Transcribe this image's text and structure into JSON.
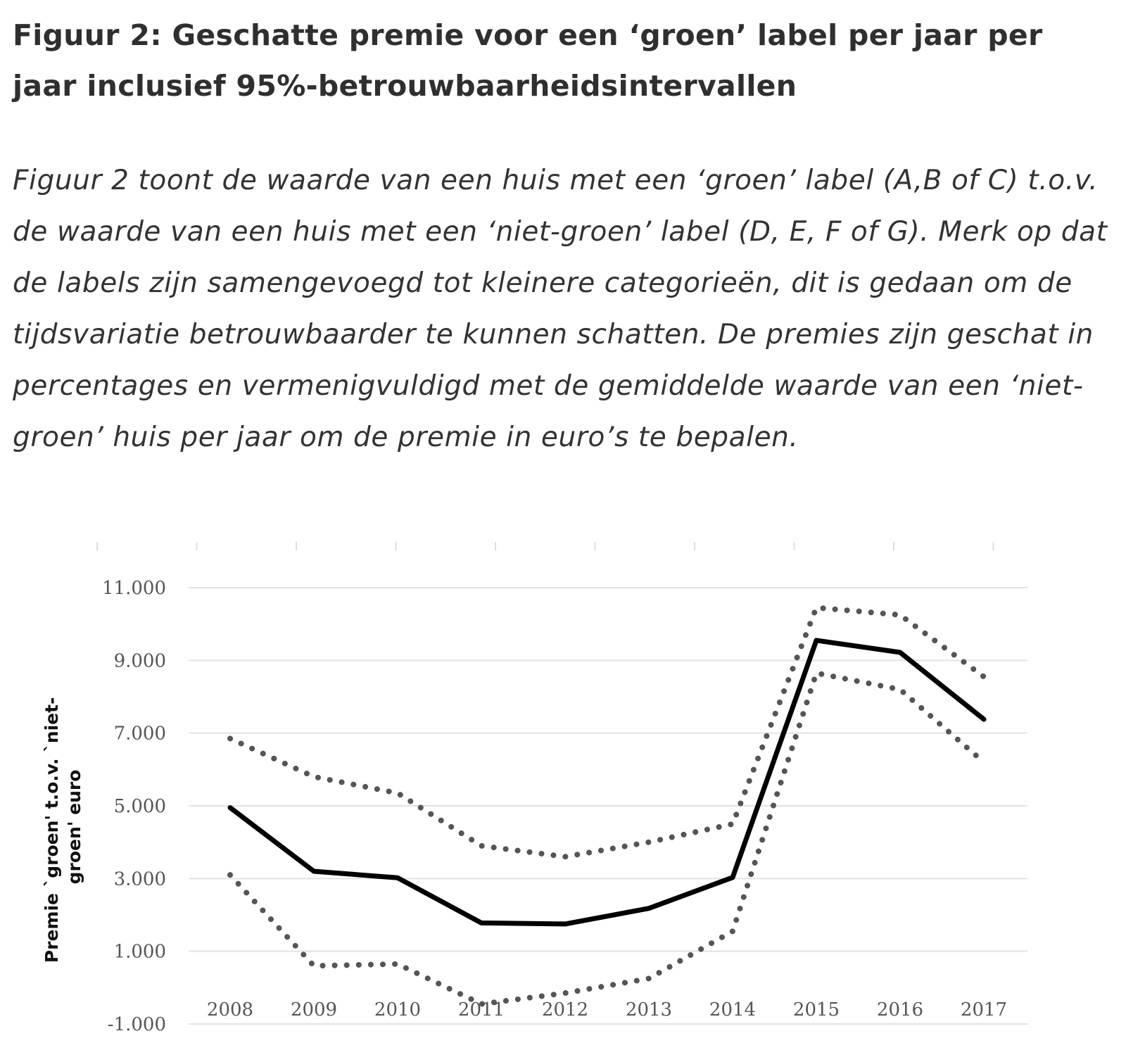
{
  "heading": "Figuur 2: Geschatte premie voor een ‘groen’ label per jaar per jaar inclusief 95%-betrouwbaarheidsintervallen",
  "description": "Figuur 2 toont de waarde van een huis met een ‘groen’ label (A,B of C) t.o.v. de waarde van een huis met een ‘niet-groen’ label (D, E, F of G). Merk op dat de labels zijn samengevoegd tot kleinere categorieën, dit is gedaan om de tijdsvariatie betrouwbaarder te kunnen schatten. De premies zijn geschat in percentages en vermenigvuldigd met de gemiddelde waarde van een ‘niet-groen’ huis per jaar om de premie in euro’s te bepalen.",
  "chart_data": {
    "type": "line",
    "categories": [
      "2008",
      "2009",
      "2010",
      "2011",
      "2012",
      "2013",
      "2014",
      "2015",
      "2016",
      "2017"
    ],
    "ylabel_lines": [
      "Premie `groen' t.o.v. `niet-",
      "groen' euro"
    ],
    "ylim": [
      -1000,
      11000
    ],
    "yticks": [
      -1000,
      1000,
      3000,
      5000,
      7000,
      9000,
      11000
    ],
    "ytick_labels": [
      "-1.000",
      "1.000",
      "3.000",
      "5.000",
      "7.000",
      "9.000",
      "11.000"
    ],
    "grid": true,
    "legend": "none",
    "series": [
      {
        "role": "estimate",
        "style": "solid",
        "color": "#000000",
        "values": [
          4950,
          3200,
          3020,
          1780,
          1750,
          2180,
          3030,
          9550,
          9220,
          7380
        ]
      },
      {
        "role": "upper-95",
        "style": "dotted",
        "color": "#555555",
        "values": [
          6850,
          5800,
          5350,
          3900,
          3600,
          4000,
          4500,
          10450,
          10250,
          8550
        ]
      },
      {
        "role": "lower-95",
        "style": "dotted",
        "color": "#555555",
        "values": [
          3100,
          600,
          650,
          -450,
          -150,
          250,
          1550,
          8650,
          8200,
          6200
        ]
      }
    ]
  }
}
